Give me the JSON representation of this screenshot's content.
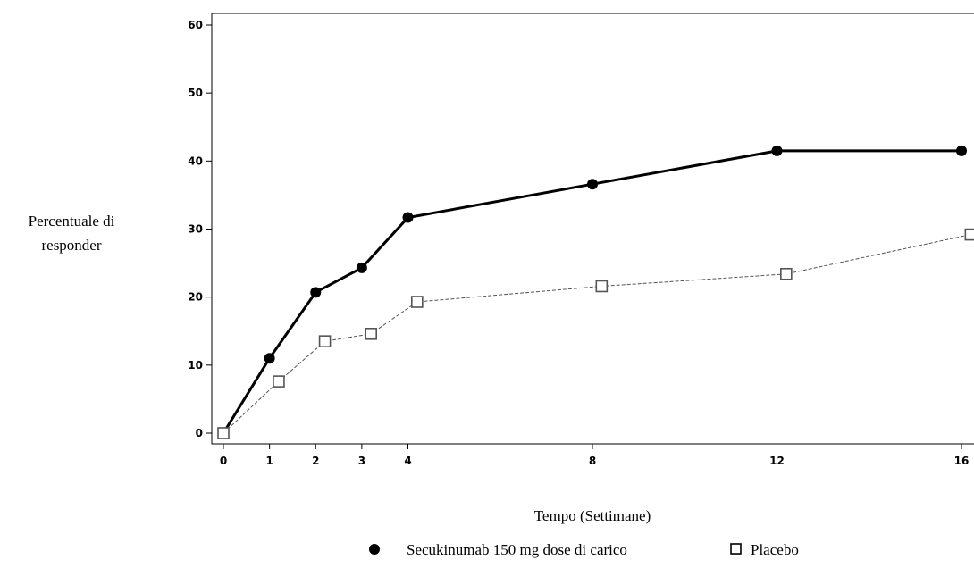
{
  "chart_data": {
    "type": "line",
    "xlabel": "Tempo (Settimane)",
    "ylabel": [
      "Percentuale di",
      "responder"
    ],
    "xlim": [
      -0.3,
      16.2
    ],
    "ylim": [
      -2,
      61
    ],
    "xticks": [
      0,
      1,
      2,
      3,
      4,
      8,
      12,
      16
    ],
    "yticks": [
      0,
      10,
      20,
      30,
      40,
      50,
      60
    ],
    "grid": false,
    "legend_position": "bottom",
    "series": [
      {
        "name": "Secukinumab 150 mg dose di carico",
        "marker": "filled-circle",
        "line_style": "solid",
        "color": "#000000",
        "points": [
          {
            "x": 0,
            "y": 0
          },
          {
            "x": 1,
            "y": 11
          },
          {
            "x": 2,
            "y": 20.7
          },
          {
            "x": 3,
            "y": 24.3
          },
          {
            "x": 4,
            "y": 31.7
          },
          {
            "x": 8,
            "y": 36.6
          },
          {
            "x": 12,
            "y": 41.5
          },
          {
            "x": 16,
            "y": 41.5
          }
        ]
      },
      {
        "name": "Placebo",
        "marker": "open-square",
        "line_style": "dashed",
        "color": "#555555",
        "points": [
          {
            "x": 0,
            "y": 0
          },
          {
            "x": 1.2,
            "y": 7.6
          },
          {
            "x": 2.2,
            "y": 13.5
          },
          {
            "x": 3.2,
            "y": 14.6
          },
          {
            "x": 4.2,
            "y": 19.3
          },
          {
            "x": 8.2,
            "y": 21.6
          },
          {
            "x": 12.2,
            "y": 23.4
          },
          {
            "x": 16.2,
            "y": 29.2
          }
        ]
      }
    ]
  }
}
